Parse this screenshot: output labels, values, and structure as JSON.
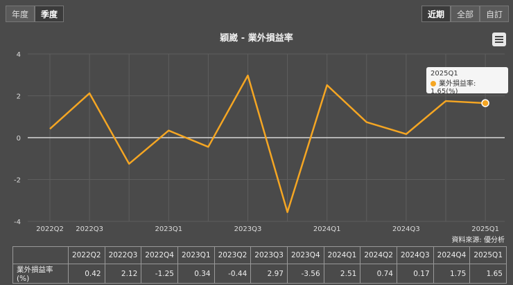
{
  "toolbar": {
    "left": [
      {
        "label": "年度",
        "active": false
      },
      {
        "label": "季度",
        "active": true
      }
    ],
    "right": [
      {
        "label": "近期",
        "active": true
      },
      {
        "label": "全部",
        "active": false
      },
      {
        "label": "自訂",
        "active": false
      }
    ]
  },
  "menu_icon": "hamburger-menu-icon",
  "source": "資料來源: 優分析",
  "tooltip": {
    "period": "2025Q1",
    "text": "業外損益率: 1.65(%)"
  },
  "colors": {
    "line": "#f5a623",
    "background": "#4a4a4a"
  },
  "chart_data": {
    "type": "line",
    "title": "穎崴 - 業外損益率",
    "categories": [
      "2022Q2",
      "2022Q3",
      "2022Q4",
      "2023Q1",
      "2023Q2",
      "2023Q3",
      "2023Q4",
      "2024Q1",
      "2024Q2",
      "2024Q3",
      "2024Q4",
      "2025Q1"
    ],
    "x_tick_labels": [
      "2022Q2",
      "2022Q3",
      "2023Q1",
      "2023Q3",
      "2024Q1",
      "2024Q3",
      "2025Q1"
    ],
    "series": [
      {
        "name": "業外損益率(%)",
        "values": [
          0.42,
          2.12,
          -1.25,
          0.34,
          -0.44,
          2.97,
          -3.56,
          2.51,
          0.74,
          0.17,
          1.75,
          1.65
        ]
      }
    ],
    "ylim": [
      -4,
      4
    ],
    "y_ticks": [
      4,
      2,
      0,
      -2,
      -4
    ],
    "grid": true
  },
  "table": {
    "row_label": "業外損益率(%)",
    "headers": [
      "2022Q2",
      "2022Q3",
      "2022Q4",
      "2023Q1",
      "2023Q2",
      "2023Q3",
      "2023Q4",
      "2024Q1",
      "2024Q2",
      "2024Q3",
      "2024Q4",
      "2025Q1"
    ],
    "values": [
      "0.42",
      "2.12",
      "-1.25",
      "0.34",
      "-0.44",
      "2.97",
      "-3.56",
      "2.51",
      "0.74",
      "0.17",
      "1.75",
      "1.65"
    ]
  }
}
